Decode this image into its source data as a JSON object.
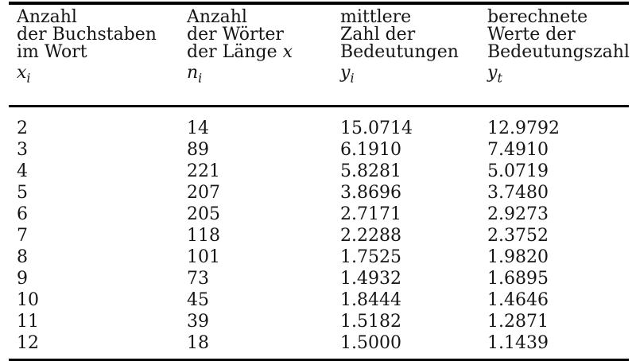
{
  "table": {
    "title_hint": "word-length vs number-of-meanings data table",
    "columns": [
      {
        "id": "xi",
        "lines": [
          "Anzahl",
          "der Buchstaben",
          "im Wort"
        ],
        "line3_math": "",
        "var": "x",
        "sub": "i"
      },
      {
        "id": "ni",
        "lines": [
          "Anzahl",
          "der Wörter",
          "der Länge"
        ],
        "line3_math": "x",
        "var": "n",
        "sub": "i"
      },
      {
        "id": "yi",
        "lines": [
          "mittlere",
          "Zahl der",
          "Bedeutungen"
        ],
        "line3_math": "",
        "var": "y",
        "sub": "i"
      },
      {
        "id": "yt",
        "lines": [
          "berechnete",
          "Werte der",
          "Bedeutungszahl"
        ],
        "line3_math": "",
        "var": "y",
        "sub": "t"
      }
    ],
    "rows": [
      [
        "2",
        "14",
        "15.0714",
        "12.9792"
      ],
      [
        "3",
        "89",
        "6.1910",
        "7.4910"
      ],
      [
        "4",
        "221",
        "5.8281",
        "5.0719"
      ],
      [
        "5",
        "207",
        "3.8696",
        "3.7480"
      ],
      [
        "6",
        "205",
        "2.7171",
        "2.9273"
      ],
      [
        "7",
        "118",
        "2.2288",
        "2.3752"
      ],
      [
        "8",
        "101",
        "1.7525",
        "1.9820"
      ],
      [
        "9",
        "73",
        "1.4932",
        "1.6895"
      ],
      [
        "10",
        "45",
        "1.8444",
        "1.4646"
      ],
      [
        "11",
        "39",
        "1.5182",
        "1.2871"
      ],
      [
        "12",
        "18",
        "1.5000",
        "1.1439"
      ]
    ]
  },
  "colors": {
    "background": "#ffffff",
    "text": "#151515",
    "rule": "#000000"
  }
}
